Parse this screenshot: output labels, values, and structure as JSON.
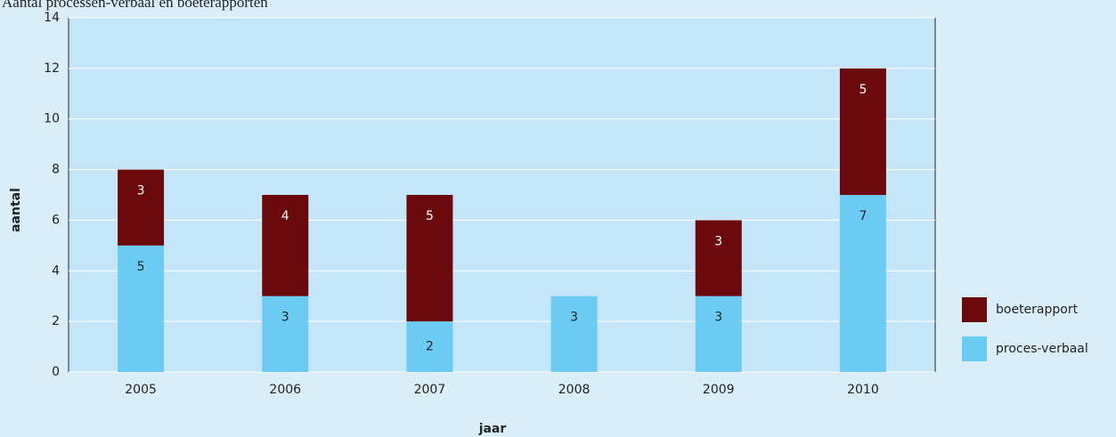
{
  "chart_data": {
    "type": "bar",
    "stacked": true,
    "title": "Aantal processen-verbaal en boeterapporten",
    "xlabel": "jaar",
    "ylabel": "aantal",
    "categories": [
      "2005",
      "2006",
      "2007",
      "2008",
      "2009",
      "2010"
    ],
    "series": [
      {
        "name": "proces-verbaal",
        "color": "#6ccbf2",
        "values": [
          5,
          3,
          2,
          3,
          3,
          7
        ]
      },
      {
        "name": "boeterapport",
        "color": "#6b0a0c",
        "values": [
          3,
          4,
          5,
          null,
          3,
          5
        ]
      }
    ],
    "ylim": [
      0,
      14
    ],
    "yticks": [
      0,
      2,
      4,
      6,
      8,
      10,
      12,
      14
    ],
    "grid": true,
    "legend": "right"
  }
}
